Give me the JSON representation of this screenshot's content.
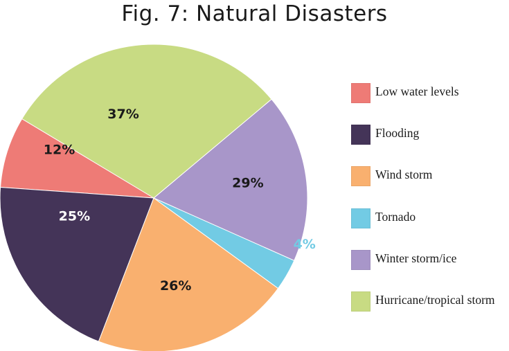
{
  "chart_data": {
    "type": "pie",
    "title": "Fig. 7: Natural Disasters",
    "slices": [
      {
        "name": "Low water levels",
        "value": 12,
        "label": "12%",
        "color": "#ee7b76",
        "label_color": "#1a1a1a"
      },
      {
        "name": "Flooding",
        "value": 25,
        "label": "25%",
        "color": "#443458",
        "label_color": "#ffffff"
      },
      {
        "name": "Wind storm",
        "value": 26,
        "label": "26%",
        "color": "#f9b06f",
        "label_color": "#1a1a1a"
      },
      {
        "name": "Tornado",
        "value": 4,
        "label": "4%",
        "color": "#72cbe4",
        "label_color": "#72cbe4"
      },
      {
        "name": "Winter storm/ice",
        "value": 29,
        "label": "29%",
        "color": "#a896c9",
        "label_color": "#1a1a1a"
      },
      {
        "name": "Hurricane/tropical storm",
        "value": 37,
        "label": "37%",
        "color": "#c8db83",
        "label_color": "#1a1a1a"
      }
    ],
    "legend": {
      "position": "right",
      "items": [
        {
          "label": "Low water levels",
          "color": "#ee7b76"
        },
        {
          "label": "Flooding",
          "color": "#443458"
        },
        {
          "label": "Wind storm",
          "color": "#f9b06f"
        },
        {
          "label": "Tornado",
          "color": "#72cbe4"
        },
        {
          "label": "Winter storm/ice",
          "color": "#a896c9"
        },
        {
          "label": "Hurricane/tropical storm",
          "color": "#c8db83"
        }
      ]
    }
  }
}
